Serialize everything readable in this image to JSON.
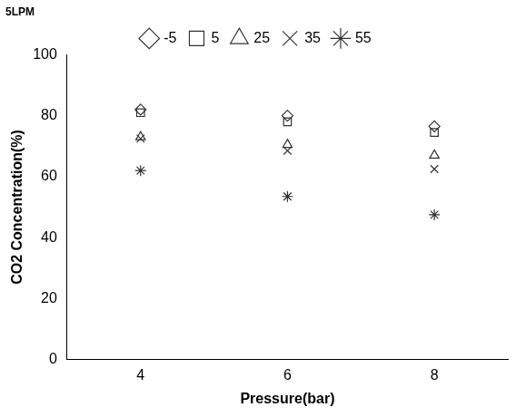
{
  "chart_data": {
    "type": "scatter",
    "title": "5LPM",
    "x_label": "Pressure(bar)",
    "y_label": "CO2 Concentration(%)",
    "x": [
      4,
      6,
      8
    ],
    "series": [
      {
        "name": "-5",
        "color": "#333333",
        "marker": "diamond",
        "values": [
          82,
          80,
          76.5
        ]
      },
      {
        "name": "5",
        "color": "#333333",
        "marker": "square",
        "values": [
          81,
          78,
          74.5
        ]
      },
      {
        "name": "25",
        "color": "#333333",
        "marker": "triangle",
        "values": [
          73,
          70.5,
          67
        ]
      },
      {
        "name": "35",
        "color": "#333333",
        "marker": "x",
        "values": [
          72.5,
          68.5,
          62.5
        ]
      },
      {
        "name": "55",
        "color": "#333333",
        "marker": "star",
        "values": [
          62,
          53.5,
          47.5
        ]
      }
    ],
    "xlim": [
      3,
      9
    ],
    "xticks": [
      4,
      6,
      8
    ],
    "ylim": [
      0,
      100
    ],
    "yticks": [
      0,
      20,
      40,
      60,
      80,
      100
    ],
    "grid": false,
    "legend": "top"
  }
}
